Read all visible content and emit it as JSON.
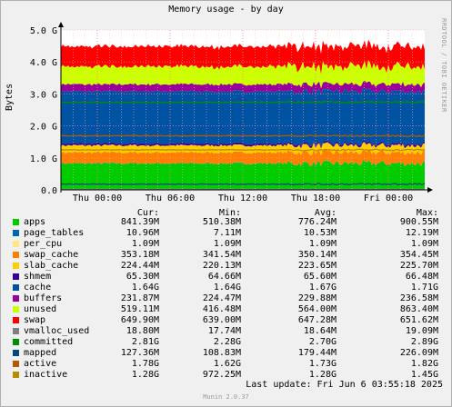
{
  "title": "Memory usage - by day",
  "ylabel": "Bytes",
  "watermark": "RRDTOOL / TOBI OETIKER",
  "columns": [
    "Cur:",
    "Min:",
    "Avg:",
    "Max:"
  ],
  "legend": [
    {
      "name": "apps",
      "color": "#00cc00",
      "cur": "841.39M",
      "min": "510.38M",
      "avg": "776.24M",
      "max": "900.55M"
    },
    {
      "name": "page_tables",
      "color": "#0066b3",
      "cur": "10.96M",
      "min": "7.11M",
      "avg": "10.53M",
      "max": "12.19M"
    },
    {
      "name": "per_cpu",
      "color": "#ffe680",
      "cur": "1.09M",
      "min": "1.09M",
      "avg": "1.09M",
      "max": "1.09M"
    },
    {
      "name": "swap_cache",
      "color": "#ff8000",
      "cur": "353.18M",
      "min": "341.54M",
      "avg": "350.14M",
      "max": "354.45M"
    },
    {
      "name": "slab_cache",
      "color": "#ffcc00",
      "cur": "224.44M",
      "min": "220.13M",
      "avg": "223.65M",
      "max": "225.70M"
    },
    {
      "name": "shmem",
      "color": "#330099",
      "cur": "65.30M",
      "min": "64.66M",
      "avg": "65.60M",
      "max": "66.48M"
    },
    {
      "name": "cache",
      "color": "#0052a3",
      "cur": "1.64G",
      "min": "1.64G",
      "avg": "1.67G",
      "max": "1.71G"
    },
    {
      "name": "buffers",
      "color": "#990099",
      "cur": "231.87M",
      "min": "224.47M",
      "avg": "229.88M",
      "max": "236.58M"
    },
    {
      "name": "unused",
      "color": "#ccff00",
      "cur": "519.11M",
      "min": "416.48M",
      "avg": "564.00M",
      "max": "863.40M"
    },
    {
      "name": "swap",
      "color": "#ff0000",
      "cur": "649.90M",
      "min": "639.00M",
      "avg": "647.28M",
      "max": "651.62M"
    },
    {
      "name": "vmalloc_used",
      "color": "#808080",
      "cur": "18.80M",
      "min": "17.74M",
      "avg": "18.64M",
      "max": "19.09M"
    },
    {
      "name": "committed",
      "color": "#008f00",
      "cur": "2.81G",
      "min": "2.28G",
      "avg": "2.70G",
      "max": "2.89G"
    },
    {
      "name": "mapped",
      "color": "#00487d",
      "cur": "127.36M",
      "min": "108.83M",
      "avg": "179.44M",
      "max": "226.09M"
    },
    {
      "name": "active",
      "color": "#b35a00",
      "cur": "1.78G",
      "min": "1.62G",
      "avg": "1.73G",
      "max": "1.82G"
    },
    {
      "name": "inactive",
      "color": "#b38f00",
      "cur": "1.28G",
      "min": "972.25M",
      "avg": "1.28G",
      "max": "1.45G"
    }
  ],
  "last_update": "Last update: Fri Jun  6 03:55:18 2025",
  "footer": "Munin 2.0.37",
  "chart_data": {
    "type": "area",
    "title": "Memory usage - by day",
    "ylabel": "Bytes",
    "y_unit": "GB",
    "ylim": [
      0,
      5
    ],
    "yticks": [
      {
        "value": 0,
        "label": "0.0"
      },
      {
        "value": 1,
        "label": "1.0 G"
      },
      {
        "value": 2,
        "label": "2.0 G"
      },
      {
        "value": 3,
        "label": "3.0 G"
      },
      {
        "value": 4,
        "label": "4.0 G"
      },
      {
        "value": 5,
        "label": "5.0 G"
      }
    ],
    "x_hours": [
      -30,
      0
    ],
    "xticks": [
      {
        "hour": -27,
        "label": "Thu 00:00"
      },
      {
        "hour": -21,
        "label": "Thu 06:00"
      },
      {
        "hour": -15,
        "label": "Thu 12:00"
      },
      {
        "hour": -9,
        "label": "Thu 18:00"
      },
      {
        "hour": -3,
        "label": "Fri 00:00"
      }
    ],
    "stack_order": [
      "apps",
      "page_tables",
      "per_cpu",
      "swap_cache",
      "slab_cache",
      "shmem",
      "cache",
      "buffers",
      "unused",
      "swap"
    ],
    "lines": [
      "vmalloc_used",
      "committed",
      "mapped",
      "active",
      "inactive"
    ],
    "approx_values_gb": {
      "apps": 0.82,
      "page_tables": 0.01,
      "per_cpu": 0.001,
      "swap_cache": 0.34,
      "slab_cache": 0.22,
      "shmem": 0.06,
      "cache": 1.63,
      "buffers": 0.22,
      "unused": 0.55,
      "swap": 0.63,
      "vmalloc_used": 0.02,
      "committed": 2.74,
      "mapped": 0.18,
      "active": 1.69,
      "inactive": 1.25
    },
    "grid": true,
    "legend_position": "bottom"
  }
}
